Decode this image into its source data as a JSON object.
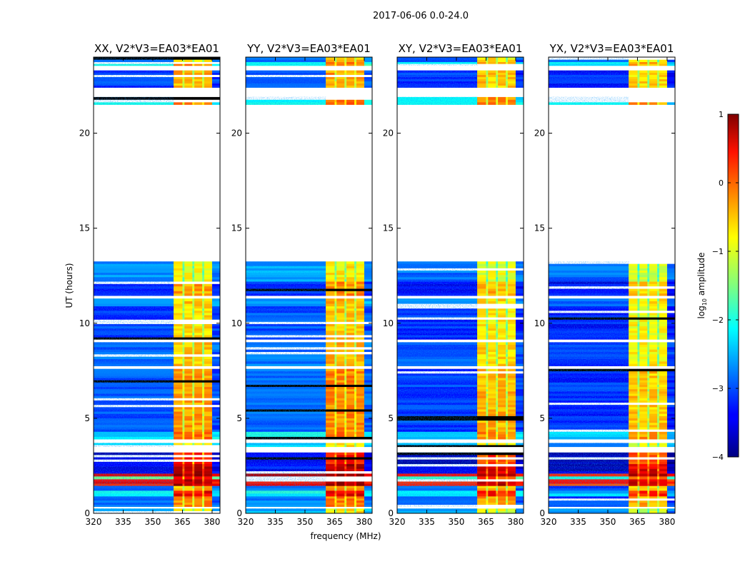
{
  "chart_data": {
    "type": "heatmap",
    "title": "2017-06-06 0.0-24.0",
    "xlabel": "frequency (MHz)",
    "ylabel": "UT (hours)",
    "xlim": [
      320,
      384
    ],
    "ylim": [
      0,
      24
    ],
    "xticks": [
      "320",
      "335",
      "350",
      "365",
      "380"
    ],
    "xtick_values": [
      320,
      335,
      350,
      365,
      380
    ],
    "yticks": [
      "0",
      "5",
      "10",
      "15",
      "20"
    ],
    "ytick_values": [
      0,
      5,
      10,
      15,
      20
    ],
    "panels": [
      {
        "title": "XX, V2*V3=EA03*EA01",
        "offset": 0
      },
      {
        "title": "YY, V2*V3=EA03*EA01",
        "offset": 0.1
      },
      {
        "title": "XY, V2*V3=EA03*EA01",
        "offset": -0.1
      },
      {
        "title": "YX, V2*V3=EA03*EA01",
        "offset": -0.2
      }
    ],
    "freq_columns": [
      {
        "from": 320,
        "to": 360.5,
        "kind": "low"
      },
      {
        "from": 360.5,
        "to": 365,
        "kind": "band"
      },
      {
        "from": 365,
        "to": 366,
        "kind": "stripe"
      },
      {
        "from": 366,
        "to": 370,
        "kind": "band"
      },
      {
        "from": 370,
        "to": 371,
        "kind": "stripe"
      },
      {
        "from": 371,
        "to": 375,
        "kind": "band"
      },
      {
        "from": 375,
        "to": 376,
        "kind": "stripe"
      },
      {
        "from": 376,
        "to": 380,
        "kind": "band"
      },
      {
        "from": 380,
        "to": 384,
        "kind": "low"
      }
    ],
    "time_rows": [
      {
        "from": 0.0,
        "to": 0.25,
        "low": -2.6,
        "band": -0.9
      },
      {
        "from": 0.25,
        "to": 0.35,
        "low": null,
        "band": null
      },
      {
        "from": 0.35,
        "to": 0.9,
        "low": -2.9,
        "band": -0.3
      },
      {
        "from": 0.9,
        "to": 1.2,
        "low": -2.2,
        "band": 0.4
      },
      {
        "from": 1.2,
        "to": 1.45,
        "low": -2.8,
        "band": -0.5
      },
      {
        "from": 1.45,
        "to": 1.8,
        "low": 0.3,
        "band": 0.8
      },
      {
        "from": 1.8,
        "to": 1.95,
        "low": -1.6,
        "band": 0.2
      },
      {
        "from": 1.95,
        "to": 2.1,
        "low": 0.4,
        "band": 0.9
      },
      {
        "from": 2.1,
        "to": 2.6,
        "low": -3.4,
        "band": 0.7
      },
      {
        "from": 2.6,
        "to": 3.2,
        "low": -3.6,
        "band": 0.2
      },
      {
        "from": 3.2,
        "to": 3.5,
        "low": null,
        "band": null
      },
      {
        "from": 3.5,
        "to": 3.7,
        "low": -2.4,
        "band": -0.8
      },
      {
        "from": 3.7,
        "to": 3.9,
        "low": null,
        "band": null
      },
      {
        "from": 3.9,
        "to": 4.3,
        "low": -2.2,
        "band": -0.2
      },
      {
        "from": 4.3,
        "to": 7.6,
        "low": -3.0,
        "band": -0.4
      },
      {
        "from": 7.6,
        "to": 7.75,
        "low": null,
        "band": null
      },
      {
        "from": 7.75,
        "to": 9.0,
        "low": -2.9,
        "band": -0.6
      },
      {
        "from": 9.0,
        "to": 9.15,
        "low": null,
        "band": null
      },
      {
        "from": 9.15,
        "to": 10.9,
        "low": -3.1,
        "band": -0.7
      },
      {
        "from": 10.9,
        "to": 11.3,
        "low": -2.6,
        "band": -0.6
      },
      {
        "from": 11.3,
        "to": 11.45,
        "low": null,
        "band": null
      },
      {
        "from": 11.45,
        "to": 12.2,
        "low": -3.2,
        "band": -0.4
      },
      {
        "from": 12.2,
        "to": 13.25,
        "low": -2.7,
        "band": -0.9
      },
      {
        "from": 13.25,
        "to": 21.5,
        "low": null,
        "band": null
      },
      {
        "from": 21.5,
        "to": 21.9,
        "low": -2.1,
        "band": -0.2
      },
      {
        "from": 21.9,
        "to": 22.4,
        "low": null,
        "band": null
      },
      {
        "from": 22.4,
        "to": 23.3,
        "low": -3.1,
        "band": -0.5
      },
      {
        "from": 23.3,
        "to": 23.55,
        "low": null,
        "band": null
      },
      {
        "from": 23.55,
        "to": 23.75,
        "low": -2.0,
        "band": -0.3
      },
      {
        "from": 23.75,
        "to": 24.0,
        "low": -2.9,
        "band": -0.7
      }
    ],
    "colorbar": {
      "label_main": "log",
      "label_sub": "10",
      "label_rest": " amplitude",
      "range": [
        -4,
        1
      ],
      "ticks": [
        "1",
        "0",
        "−1",
        "−2",
        "−3",
        "−4"
      ],
      "tick_values": [
        1,
        0,
        -1,
        -2,
        -3,
        -4
      ],
      "colormap": "jet"
    }
  }
}
